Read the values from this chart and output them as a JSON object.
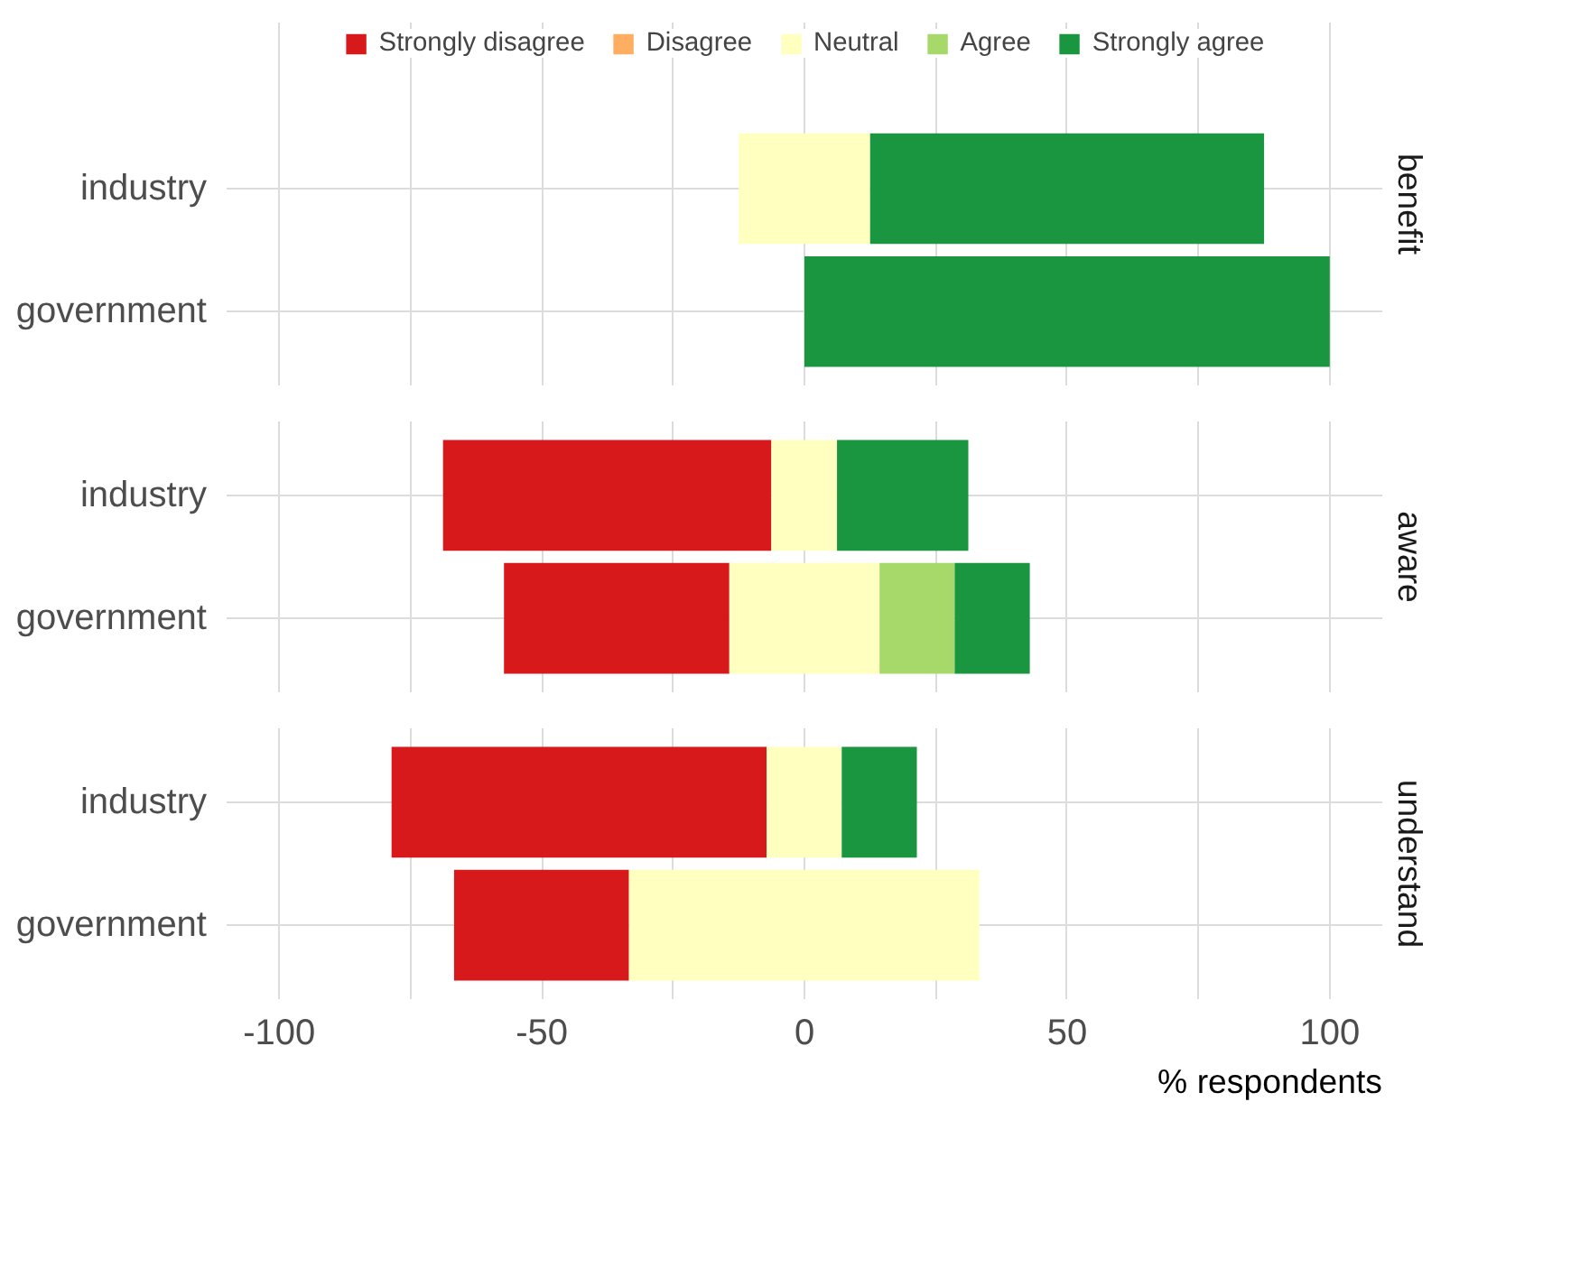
{
  "chart_data": [
    {
      "type": "bar",
      "orientation": "horizontal",
      "title": "benefit",
      "categories": [
        "industry",
        "government"
      ],
      "series": [
        {
          "name": "Strongly disagree",
          "color": "#d7191c",
          "values": [
            null,
            null
          ],
          "base": [
            null,
            null
          ]
        },
        {
          "name": "Disagree",
          "color": "#fdae61",
          "values": [
            null,
            null
          ],
          "base": [
            null,
            null
          ]
        },
        {
          "name": "Neutral",
          "color": "#ffffbf",
          "values": [
            25,
            null
          ],
          "base": [
            -12.5,
            null
          ]
        },
        {
          "name": "Agree",
          "color": "#a6d96a",
          "values": [
            null,
            null
          ],
          "base": [
            null,
            null
          ]
        },
        {
          "name": "Strongly agree",
          "color": "#1a9641",
          "values": [
            75,
            100
          ],
          "base": [
            12.5,
            0
          ]
        }
      ],
      "xlim": [
        -110,
        110
      ],
      "xticks": [
        -100,
        -75,
        -50,
        -25,
        0,
        25,
        50,
        75,
        100
      ],
      "grid": true,
      "legend": "top",
      "tick_labels": "y"
    },
    {
      "type": "bar",
      "orientation": "horizontal",
      "title": "aware",
      "categories": [
        "industry",
        "government"
      ],
      "series": [
        {
          "color": "#d7191c",
          "values": [
            62.5,
            42.9
          ],
          "base": [
            -68.8,
            -57.2
          ]
        },
        {
          "color": "#fdae61",
          "values": [
            null,
            null
          ],
          "base": [
            null,
            null
          ]
        },
        {
          "color": "#ffffbf",
          "values": [
            12.5,
            28.6
          ],
          "base": [
            -6.3,
            -14.3
          ]
        },
        {
          "color": "#a6d96a",
          "values": [
            null,
            14.3
          ],
          "base": [
            null,
            14.3
          ]
        },
        {
          "color": "#1a9641",
          "values": [
            25,
            14.3
          ],
          "base": [
            6.2,
            28.6
          ]
        }
      ],
      "xlim": [
        -110,
        110
      ],
      "xticks": [
        -100,
        -75,
        -50,
        -25,
        0,
        25,
        50,
        75,
        100
      ],
      "grid": true,
      "tick_labels": "y"
    },
    {
      "type": "bar",
      "orientation": "horizontal",
      "title": "understand",
      "xlabel": "% respondents",
      "categories": [
        "industry",
        "government"
      ],
      "series": [
        {
          "color": "#d7191c",
          "values": [
            71.4,
            33.3
          ],
          "base": [
            -78.6,
            -66.7
          ]
        },
        {
          "color": "#fdae61",
          "values": [
            null,
            null
          ],
          "base": [
            null,
            null
          ]
        },
        {
          "color": "#ffffbf",
          "values": [
            14.3,
            66.7
          ],
          "base": [
            -7.2,
            -33.4
          ]
        },
        {
          "color": "#a6d96a",
          "values": [
            null,
            null
          ],
          "base": [
            null,
            null
          ]
        },
        {
          "color": "#1a9641",
          "values": [
            14.3,
            null
          ],
          "base": [
            7.1,
            null
          ]
        }
      ],
      "xlim": [
        -110,
        110
      ],
      "xticks": [
        {
          "value": -100,
          "label": "-100"
        },
        {
          "value": -75,
          "label": null
        },
        {
          "value": -50,
          "label": "-50"
        },
        {
          "value": -25,
          "label": null
        },
        0,
        {
          "value": 25,
          "label": null
        },
        50,
        {
          "value": 75,
          "label": null
        },
        100
      ],
      "grid": true
    }
  ]
}
